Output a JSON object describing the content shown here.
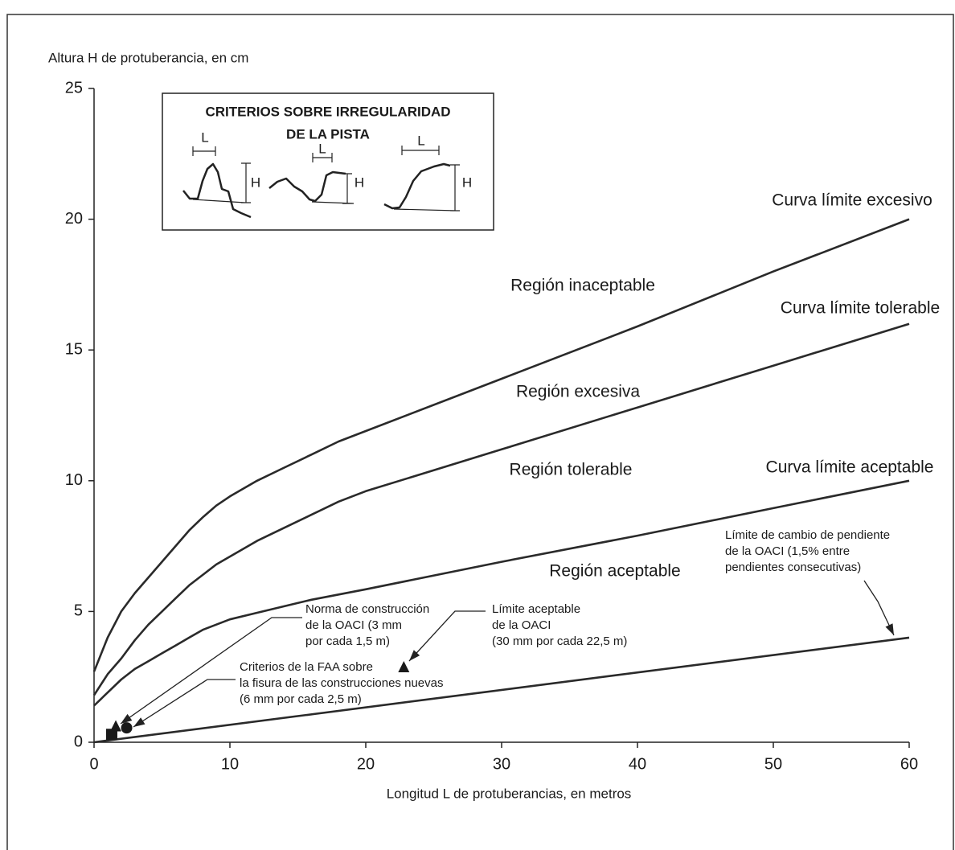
{
  "chart_data": {
    "type": "line",
    "y_label": "Altura H de protuberancia, en cm",
    "x_label": "Longitud L de protuberancias, en metros",
    "xlim": [
      0,
      60
    ],
    "ylim": [
      0,
      25
    ],
    "xticks": [
      0,
      10,
      20,
      30,
      40,
      50,
      60
    ],
    "yticks": [
      0,
      5,
      10,
      15,
      20,
      25
    ],
    "series": [
      {
        "name": "Curva límite excesivo",
        "color": "#2a2a2a",
        "x": [
          0,
          1,
          2,
          3,
          4,
          5,
          6,
          7,
          8,
          9,
          10,
          12,
          14,
          16,
          18,
          20,
          30,
          40,
          50,
          60
        ],
        "values": [
          2.7,
          4.0,
          5.0,
          5.7,
          6.3,
          6.9,
          7.5,
          8.1,
          8.6,
          9.05,
          9.4,
          10.0,
          10.5,
          11.0,
          11.5,
          11.9,
          13.9,
          15.9,
          18.0,
          20.0
        ]
      },
      {
        "name": "Curva límite tolerable",
        "color": "#2a2a2a",
        "x": [
          0,
          1,
          2,
          3,
          4,
          5,
          6,
          7,
          8,
          9,
          10,
          12,
          14,
          16,
          18,
          20,
          30,
          40,
          50,
          60
        ],
        "values": [
          1.8,
          2.6,
          3.2,
          3.9,
          4.5,
          5.0,
          5.5,
          6.0,
          6.4,
          6.8,
          7.1,
          7.7,
          8.2,
          8.7,
          9.2,
          9.6,
          11.2,
          12.8,
          14.4,
          16.0
        ]
      },
      {
        "name": "Curva límite aceptable",
        "color": "#2a2a2a",
        "x": [
          0,
          1,
          2,
          3,
          4,
          5,
          6,
          7,
          8,
          9,
          10,
          12,
          14,
          16,
          18,
          20,
          30,
          40,
          50,
          60
        ],
        "values": [
          1.4,
          1.9,
          2.4,
          2.8,
          3.1,
          3.4,
          3.7,
          4.0,
          4.3,
          4.5,
          4.7,
          4.95,
          5.2,
          5.45,
          5.65,
          5.85,
          6.9,
          7.9,
          8.95,
          10.0
        ]
      },
      {
        "color": "#2a2a2a",
        "x": [
          0,
          60
        ],
        "values": [
          0,
          4
        ]
      }
    ],
    "regions": [
      "Región inaceptable",
      "Región excesiva",
      "Región tolerable",
      "Región aceptable"
    ],
    "markers": [
      {
        "shape": "square",
        "x": 1.3,
        "y": 0.3
      },
      {
        "shape": "triangle",
        "x": 1.6,
        "y": 0.6
      },
      {
        "shape": "circle",
        "x": 2.4,
        "y": 0.55
      },
      {
        "shape": "triangle",
        "x": 22.8,
        "y": 2.86
      }
    ],
    "annotations": [
      {
        "lines": [
          "Límite de cambio de pendiente",
          "de la OACI (1,5% entre",
          "pendientes consecutivas)"
        ]
      },
      {
        "lines": [
          "Norma de construcción",
          "de la OACI (3 mm",
          "por cada 1,5 m)"
        ]
      },
      {
        "lines": [
          "Límite aceptable",
          "de la OACI",
          "(30 mm por cada 22,5 m)"
        ]
      },
      {
        "lines": [
          "Criterios de la FAA sobre",
          "la fisura de las construcciones nuevas",
          "(6 mm por cada 2,5 m)"
        ]
      }
    ],
    "inset": {
      "title_lines": [
        "CRITERIOS SOBRE IRREGULARIDAD",
        "DE LA PISTA"
      ],
      "labels": [
        "L",
        "H",
        "L",
        "H",
        "L",
        "H"
      ]
    }
  }
}
